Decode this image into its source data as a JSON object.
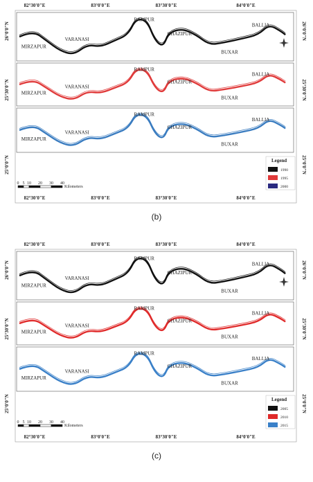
{
  "panels": [
    {
      "caption": "(b)",
      "longitude_labels": [
        "82°30'0\"E",
        "83°0'0\"E",
        "83°30'0\"E",
        "84°0'0\"E"
      ],
      "latitude_labels": [
        "26°0'0\"N",
        "25°30'0\"N",
        "25°0'0\"N"
      ],
      "strips": [
        {
          "color": "#111111",
          "cities": [
            "MIRZAPUR",
            "VARANASI",
            "RAMPUR",
            "GHAZIPUR",
            "BUXAR",
            "BALLIA"
          ]
        },
        {
          "color": "#e03a3a",
          "cities": [
            "MIRZAPUR",
            "VARANASI",
            "RAMPUR",
            "GHAZIPUR",
            "BUXAR",
            "BALLIA"
          ]
        },
        {
          "color": "#3a7cc0",
          "cities": [
            "MIRZAPUR",
            "VARANASI",
            "RAMPUR",
            "GHAZIPUR",
            "BUXAR",
            "BALLIA"
          ]
        }
      ],
      "legend": {
        "title": "Legend",
        "items": [
          {
            "label": "1990",
            "color": "#111111"
          },
          {
            "label": "1995",
            "color": "#e03a3a"
          },
          {
            "label": "2000",
            "color": "#2a2a80"
          }
        ]
      },
      "scale_labels": [
        "0",
        "5",
        "10",
        "20",
        "30",
        "40",
        "Kilometers"
      ]
    },
    {
      "caption": "(c)",
      "longitude_labels": [
        "82°30'0\"E",
        "83°0'0\"E",
        "83°30'0\"E",
        "84°0'0\"E"
      ],
      "latitude_labels": [
        "26°0'0\"N",
        "25°30'0\"N",
        "25°0'0\"N"
      ],
      "strips": [
        {
          "color": "#111111",
          "cities": [
            "MIRZAPUR",
            "VARANASI",
            "RAMPUR",
            "GHAZIPUR",
            "BUXAR",
            "BALLIA"
          ]
        },
        {
          "color": "#e02a2a",
          "cities": [
            "MIRZAPUR",
            "VARANASI",
            "RAMPUR",
            "GHAZIPUR",
            "BUXAR",
            "BALLIA"
          ]
        },
        {
          "color": "#3a80c8",
          "cities": [
            "MIRZAPUR",
            "VARANASI",
            "RAMPUR",
            "GHAZIPUR",
            "BUXAR",
            "BALLIA"
          ]
        }
      ],
      "legend": {
        "title": "Legend",
        "items": [
          {
            "label": "2005",
            "color": "#111111"
          },
          {
            "label": "2010",
            "color": "#e02a2a"
          },
          {
            "label": "2015",
            "color": "#3a80c8"
          }
        ]
      },
      "scale_labels": [
        "0",
        "5",
        "10",
        "20",
        "30",
        "40",
        "Kilometers"
      ]
    }
  ]
}
